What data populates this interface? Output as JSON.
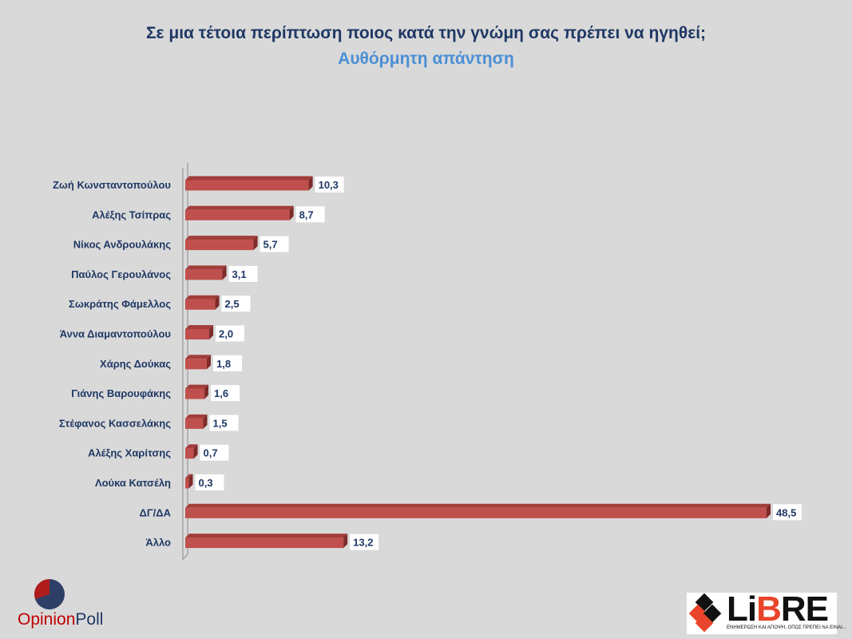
{
  "chart_data": {
    "type": "bar",
    "orientation": "horizontal",
    "title": "Σε μια τέτοια περίπτωση ποιος κατά την γνώμη σας πρέπει να ηγηθεί;",
    "subtitle": "Αυθόρμητη απάντηση",
    "categories": [
      "Ζωή Κωνσταντοπούλου",
      "Αλέξης Τσίπρας",
      "Νίκος Ανδρουλάκης",
      "Παύλος Γερουλάνος",
      "Σωκράτης Φάμελλος",
      "Άννα Διαμαντοπούλου",
      "Χάρης Δούκας",
      "Γιάνης Βαρουφάκης",
      "Στέφανος Κασσελάκης",
      "Αλέξης Χαρίτσης",
      "Λούκα Κατσέλη",
      "ΔΓ/ΔΑ",
      "Άλλο"
    ],
    "values": [
      10.3,
      8.7,
      5.7,
      3.1,
      2.5,
      2.0,
      1.8,
      1.6,
      1.5,
      0.7,
      0.3,
      48.5,
      13.2
    ],
    "labels": [
      "10,3",
      "8,7",
      "5,7",
      "3,1",
      "2,5",
      "2,0",
      "1,8",
      "1,6",
      "1,5",
      "0,7",
      "0,3",
      "48,5",
      "13,2"
    ],
    "xlim": [
      0,
      48.5
    ],
    "bar_color": "#c0504d",
    "grid": false,
    "legend": "none"
  },
  "logos": {
    "opinion_a": "Opinion",
    "opinion_b": "Poll",
    "libre_a": "Li",
    "libre_b": "B",
    "libre_c": "RE",
    "libre_tagline": "ΕΝΗΜΕΡΩΣΗ ΚΑΙ ΑΠΟΨΗ, ΟΠΩΣ ΠΡΕΠΕΙ ΝΑ ΕΙΝΑΙ..."
  }
}
